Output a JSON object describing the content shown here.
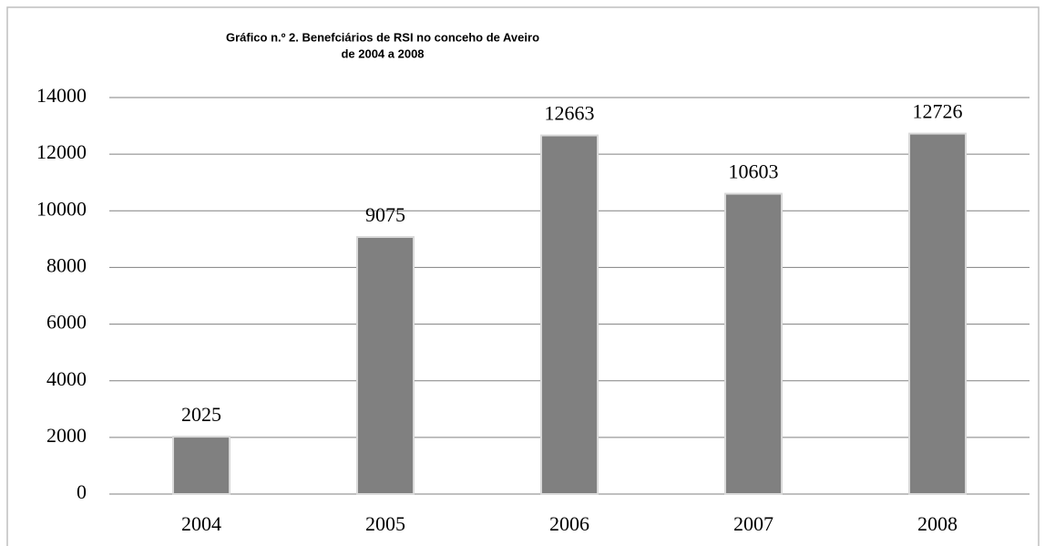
{
  "chart_data": {
    "type": "bar",
    "title": [
      "Gráfico n.º 2. Benefciários de RSI no conceho de Aveiro",
      "de 2004 a 2008"
    ],
    "categories": [
      "2004",
      "2005",
      "2006",
      "2007",
      "2008"
    ],
    "values": [
      2025,
      9075,
      12663,
      10603,
      12726
    ],
    "color": "#808080",
    "ylim": [
      0,
      14000
    ],
    "yticks": [
      0,
      2000,
      4000,
      6000,
      8000,
      10000,
      12000,
      14000
    ],
    "grid": true
  }
}
